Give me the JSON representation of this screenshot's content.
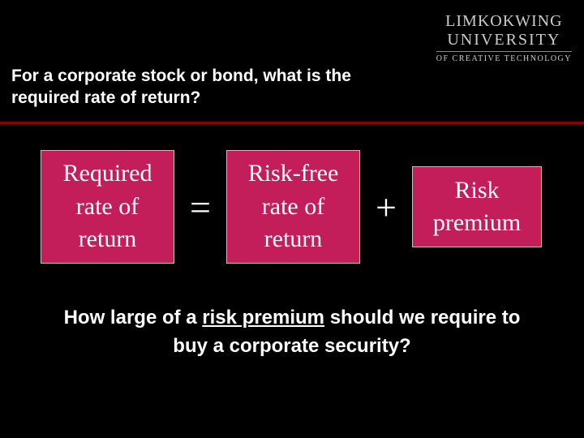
{
  "slide": {
    "background_color": "#000000",
    "divider_color": "#8b0000",
    "text_color": "#ffffff",
    "box_fill": "#c41e5a",
    "box_border": "#c0c0c0"
  },
  "logo": {
    "line1": "LIMKOKWING",
    "line2": "UNIVERSITY",
    "line3": "OF CREATIVE TECHNOLOGY"
  },
  "question_top": "For a corporate stock or bond, what is the required rate of return?",
  "equation": {
    "term1": {
      "l1": "Required",
      "l2": "rate of",
      "l3": "return"
    },
    "op1": "=",
    "term2": {
      "l1": "Risk-free",
      "l2": "rate of",
      "l3": "return"
    },
    "op2": "+",
    "term3": {
      "l1": "Risk",
      "l2": "premium"
    }
  },
  "question_bottom": {
    "pre": "How large of a ",
    "emph": "risk premium",
    "post": " should we require to buy a corporate security?"
  },
  "typography": {
    "heading_font": "Verdana",
    "body_font": "Times New Roman",
    "heading_size_pt": 21,
    "box_text_size_pt": 30,
    "operator_size_pt": 46,
    "bottom_size_pt": 24
  }
}
